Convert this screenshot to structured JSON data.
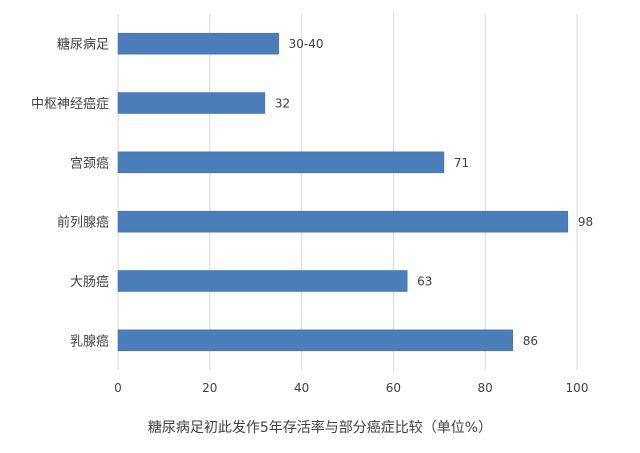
{
  "chart_data": {
    "type": "bar",
    "orientation": "horizontal",
    "title": "糖尿病足初此发作5年存活率与部分癌症比较（单位%）",
    "categories": [
      "糖尿病足",
      "中枢神经癌症",
      "宫颈癌",
      "前列腺癌",
      "大肠癌",
      "乳腺癌"
    ],
    "values": [
      35,
      32,
      71,
      98,
      63,
      86
    ],
    "data_labels": [
      "30-40",
      "32",
      "71",
      "98",
      "63",
      "86"
    ],
    "xlim": [
      0,
      100
    ],
    "xticks": [
      "0",
      "20",
      "40",
      "60",
      "80",
      "100"
    ],
    "grid": "vertical",
    "legend": "none",
    "colors": {
      "bar": "#4a7ebb",
      "grid": "#d9d9d9",
      "text": "#404040"
    }
  }
}
